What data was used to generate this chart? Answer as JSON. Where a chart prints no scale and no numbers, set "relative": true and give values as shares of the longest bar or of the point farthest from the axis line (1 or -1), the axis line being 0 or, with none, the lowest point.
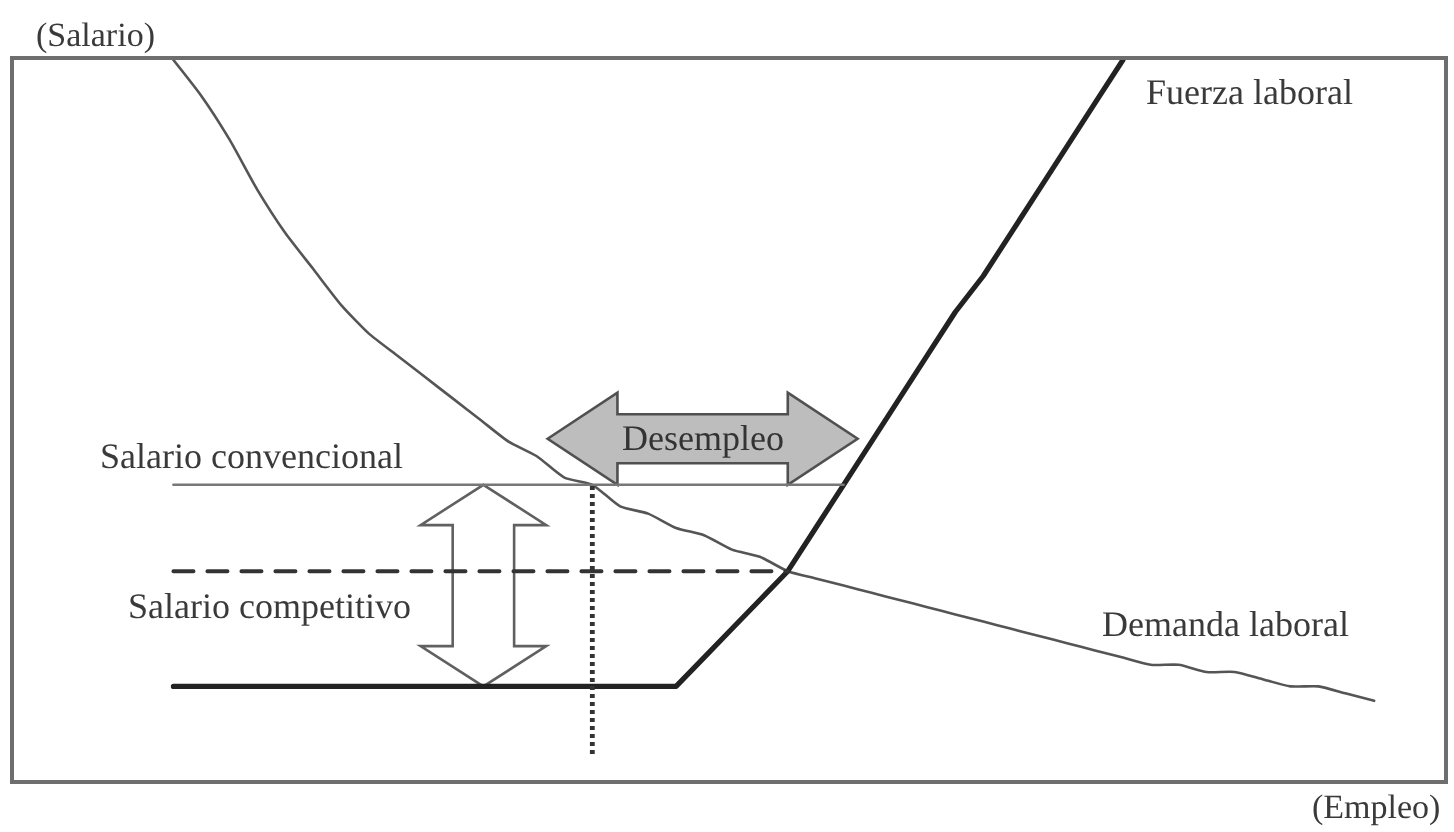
{
  "chart_data": {
    "type": "line",
    "relative": true,
    "xlabel": "(Empleo)",
    "ylabel": "(Salario)",
    "categories": [
      null,
      null,
      null,
      null,
      null,
      null,
      null,
      null,
      null,
      null,
      null,
      null,
      null,
      null,
      null,
      null,
      null,
      null,
      null,
      null,
      null,
      null,
      null,
      null,
      null,
      null,
      null,
      null,
      null,
      null,
      null,
      null,
      null,
      null,
      null,
      null,
      null,
      null,
      null,
      null,
      null,
      null,
      null,
      null
    ],
    "series": [
      {
        "name": "Demanda laboral",
        "color": "#555555",
        "values": [
          1.0,
          0.95,
          0.89,
          0.82,
          0.76,
          0.71,
          0.66,
          0.62,
          0.59,
          0.56,
          0.53,
          0.5,
          0.47,
          0.45,
          0.42,
          0.41,
          0.38,
          0.37,
          0.35,
          0.34,
          0.32,
          0.31,
          0.29,
          0.28,
          0.27,
          0.26,
          0.25,
          0.24,
          0.23,
          0.22,
          0.21,
          0.2,
          0.19,
          0.18,
          0.17,
          0.16,
          0.16,
          0.15,
          0.15,
          0.14,
          0.13,
          0.13,
          0.12,
          0.11
        ]
      },
      {
        "name": "Fuerza laboral",
        "color": "#222222",
        "values": [
          0.13,
          0.13,
          0.13,
          0.13,
          0.13,
          0.13,
          0.13,
          0.13,
          0.13,
          0.13,
          0.13,
          0.13,
          0.13,
          0.13,
          0.13,
          0.13,
          0.13,
          0.13,
          0.13,
          0.17,
          0.21,
          0.25,
          0.29,
          0.35,
          0.41,
          0.47,
          0.53,
          0.59,
          0.65,
          0.7,
          0.76,
          0.82,
          0.88,
          0.94,
          1.0,
          null,
          null,
          null,
          null,
          null,
          null,
          null,
          null,
          null
        ]
      },
      {
        "name": "Salario convencional",
        "color": "#777777",
        "values": [
          0.41,
          0.41,
          0.41,
          0.41,
          0.41,
          0.41,
          0.41,
          0.41,
          0.41,
          0.41,
          0.41,
          0.41,
          0.41,
          0.41,
          0.41,
          0.41,
          0.41,
          0.41,
          0.41,
          0.41,
          0.41,
          0.41,
          0.41,
          0.41,
          0.41,
          null,
          null,
          null,
          null,
          null,
          null,
          null,
          null,
          null,
          null,
          null,
          null,
          null,
          null,
          null,
          null,
          null,
          null,
          null
        ]
      },
      {
        "name": "Salario competitivo",
        "color": "#333333",
        "line_style": "dashed",
        "values": [
          0.29,
          0.29,
          0.29,
          0.29,
          0.29,
          0.29,
          0.29,
          0.29,
          0.29,
          0.29,
          0.29,
          0.29,
          0.29,
          0.29,
          0.29,
          0.29,
          0.29,
          0.29,
          0.29,
          0.29,
          0.29,
          0.29,
          0.29,
          null,
          null,
          null,
          null,
          null,
          null,
          null,
          null,
          null,
          null,
          null,
          null,
          null,
          null,
          null,
          null,
          null,
          null,
          null,
          null,
          null
        ]
      }
    ],
    "annotations": [
      "Desempleo"
    ]
  }
}
